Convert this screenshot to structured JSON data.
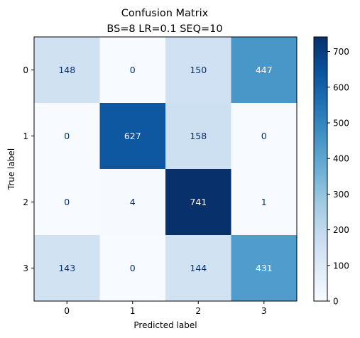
{
  "chart_data": {
    "type": "heatmap",
    "title_line1": "Confusion Matrix",
    "title_line2": "BS=8 LR=0.1 SEQ=10",
    "xlabel": "Predicted label",
    "ylabel": "True label",
    "x_categories": [
      "0",
      "1",
      "2",
      "3"
    ],
    "y_categories": [
      "0",
      "1",
      "2",
      "3"
    ],
    "values": [
      [
        148,
        0,
        150,
        447
      ],
      [
        0,
        627,
        158,
        0
      ],
      [
        0,
        4,
        741,
        1
      ],
      [
        143,
        0,
        144,
        431
      ]
    ],
    "colormap": "Blues",
    "colorbar": {
      "range": [
        0,
        741
      ],
      "ticks": [
        0,
        100,
        200,
        300,
        400,
        500,
        600,
        700
      ]
    }
  }
}
